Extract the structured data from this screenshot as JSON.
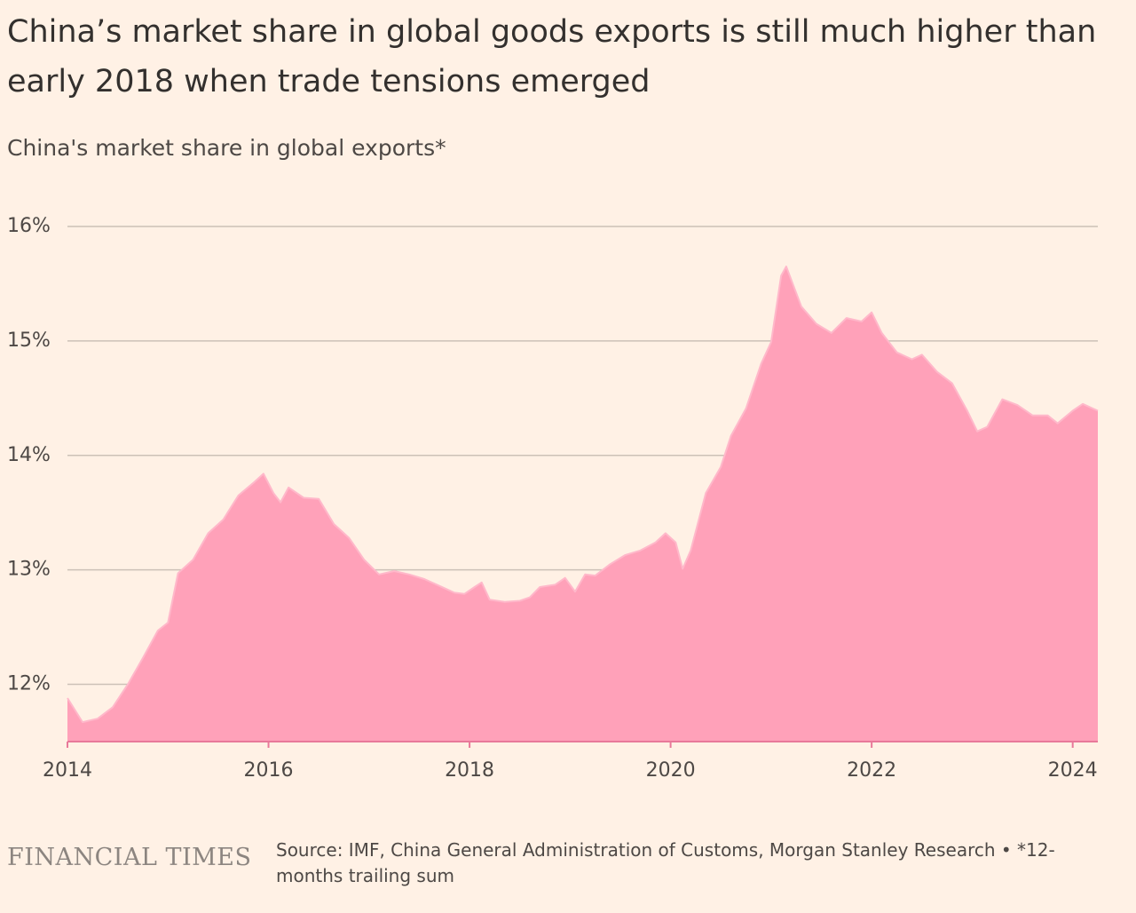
{
  "chart_data": {
    "type": "area",
    "title": "China’s market share in global goods exports is still much higher than early 2018 when trade tensions emerged",
    "subtitle": "China's market share in global exports*",
    "brand": "FINANCIAL TIMES",
    "source": "Source: IMF, China General Administration of Customs, Morgan Stanley Research • *12-months trailing sum",
    "color": "#ffa1b9",
    "axis_color": "#e8799a",
    "grid": true,
    "x": [
      2014.0,
      2014.15,
      2014.3,
      2014.45,
      2014.6,
      2014.75,
      2014.9,
      2015.0,
      2015.1,
      2015.25,
      2015.4,
      2015.55,
      2015.7,
      2015.85,
      2015.95,
      2016.05,
      2016.12,
      2016.2,
      2016.35,
      2016.5,
      2016.65,
      2016.8,
      2016.95,
      2017.1,
      2017.25,
      2017.4,
      2017.55,
      2017.7,
      2017.85,
      2017.95,
      2018.05,
      2018.12,
      2018.2,
      2018.35,
      2018.5,
      2018.6,
      2018.7,
      2018.85,
      2018.95,
      2019.05,
      2019.15,
      2019.25,
      2019.4,
      2019.55,
      2019.7,
      2019.85,
      2019.95,
      2020.05,
      2020.12,
      2020.2,
      2020.35,
      2020.5,
      2020.6,
      2020.75,
      2020.9,
      2021.0,
      2021.1,
      2021.15,
      2021.3,
      2021.45,
      2021.6,
      2021.75,
      2021.9,
      2022.0,
      2022.1,
      2022.25,
      2022.4,
      2022.5,
      2022.65,
      2022.8,
      2022.95,
      2023.05,
      2023.15,
      2023.3,
      2023.45,
      2023.6,
      2023.75,
      2023.85,
      2024.0,
      2024.1,
      2024.25
    ],
    "values": [
      11.88,
      11.67,
      11.7,
      11.8,
      12.0,
      12.23,
      12.47,
      12.54,
      12.97,
      13.09,
      13.32,
      13.44,
      13.65,
      13.76,
      13.84,
      13.67,
      13.59,
      13.72,
      13.63,
      13.62,
      13.4,
      13.28,
      13.09,
      12.96,
      12.99,
      12.96,
      12.92,
      12.86,
      12.8,
      12.79,
      12.85,
      12.89,
      12.74,
      12.72,
      12.73,
      12.76,
      12.85,
      12.87,
      12.93,
      12.81,
      12.96,
      12.95,
      13.05,
      13.13,
      13.17,
      13.24,
      13.32,
      13.24,
      13.01,
      13.17,
      13.67,
      13.9,
      14.17,
      14.41,
      14.8,
      14.99,
      15.57,
      15.65,
      15.3,
      15.15,
      15.07,
      15.2,
      15.17,
      15.25,
      15.07,
      14.9,
      14.84,
      14.88,
      14.73,
      14.63,
      14.39,
      14.21,
      14.25,
      14.49,
      14.44,
      14.35,
      14.35,
      14.28,
      14.39,
      14.45,
      14.39
    ],
    "xlim": [
      2014,
      2024.25
    ],
    "xticks": [
      2014,
      2016,
      2018,
      2020,
      2022,
      2024
    ],
    "ylim": [
      11.5,
      16
    ],
    "yticks": [
      {
        "value": 12,
        "label": "12%"
      },
      {
        "value": 13,
        "label": "13%"
      },
      {
        "value": 14,
        "label": "14%"
      },
      {
        "value": 15,
        "label": "15%"
      },
      {
        "value": 16,
        "label": "16%"
      }
    ]
  }
}
